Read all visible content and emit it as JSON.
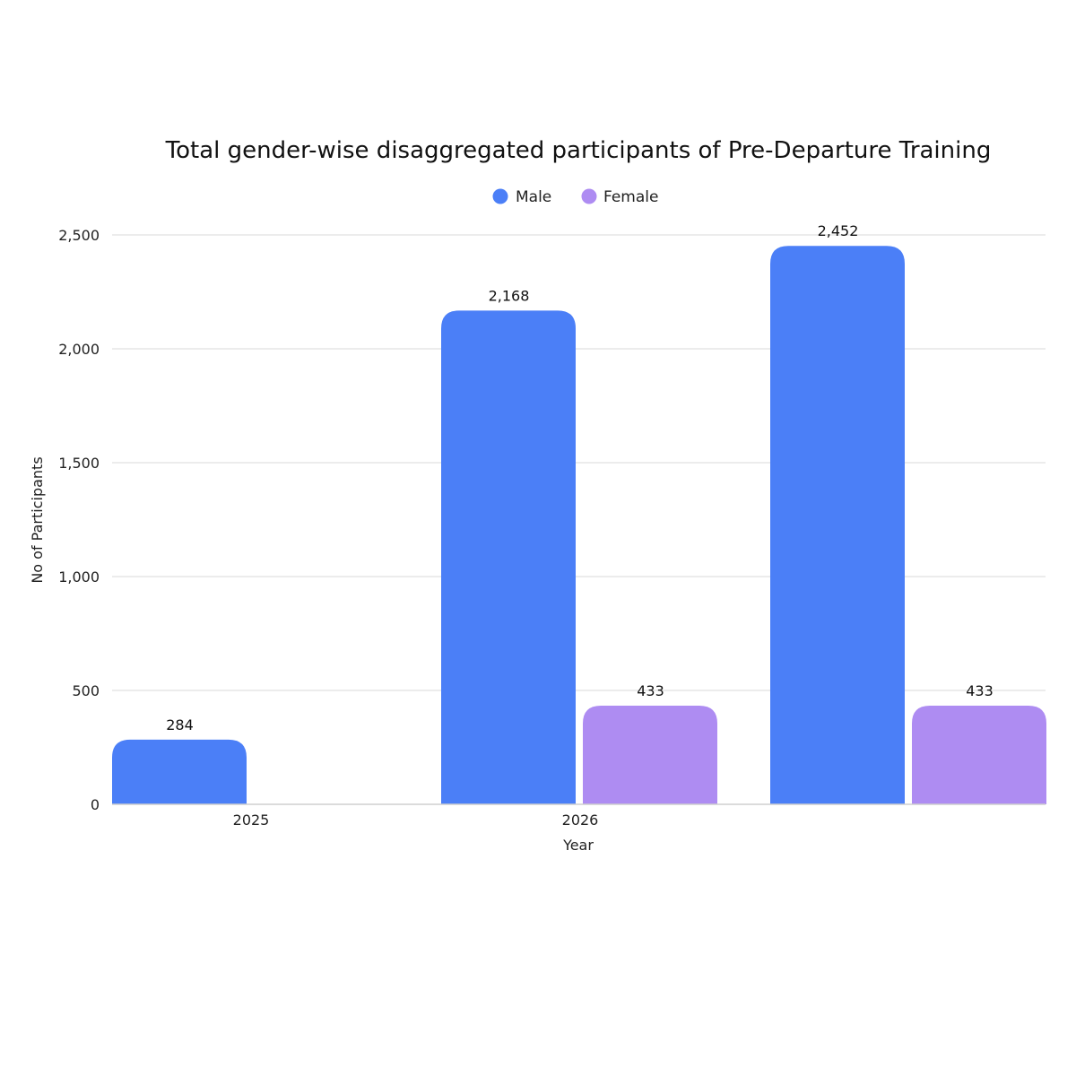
{
  "chart_data": {
    "type": "bar",
    "title": "Total gender-wise disaggregated participants of Pre-Departure Training",
    "xlabel": "Year",
    "ylabel": "No of Participants",
    "ylim": [
      0,
      2500
    ],
    "yticks": [
      0,
      500,
      1000,
      1500,
      2000,
      2500
    ],
    "ytick_labels": [
      "0",
      "500",
      "1,000",
      "1,500",
      "2,000",
      "2,500"
    ],
    "grid": true,
    "legend": "top-center",
    "categories": [
      "2025",
      "2026",
      ""
    ],
    "series": [
      {
        "name": "Male",
        "color": "#4b7ff7",
        "values": [
          284,
          2168,
          2452
        ],
        "labels": [
          "284",
          "2,168",
          "2,452"
        ]
      },
      {
        "name": "Female",
        "color": "#ae8cf2",
        "values": [
          null,
          433,
          433
        ],
        "labels": [
          "",
          "433",
          "433"
        ]
      }
    ]
  }
}
